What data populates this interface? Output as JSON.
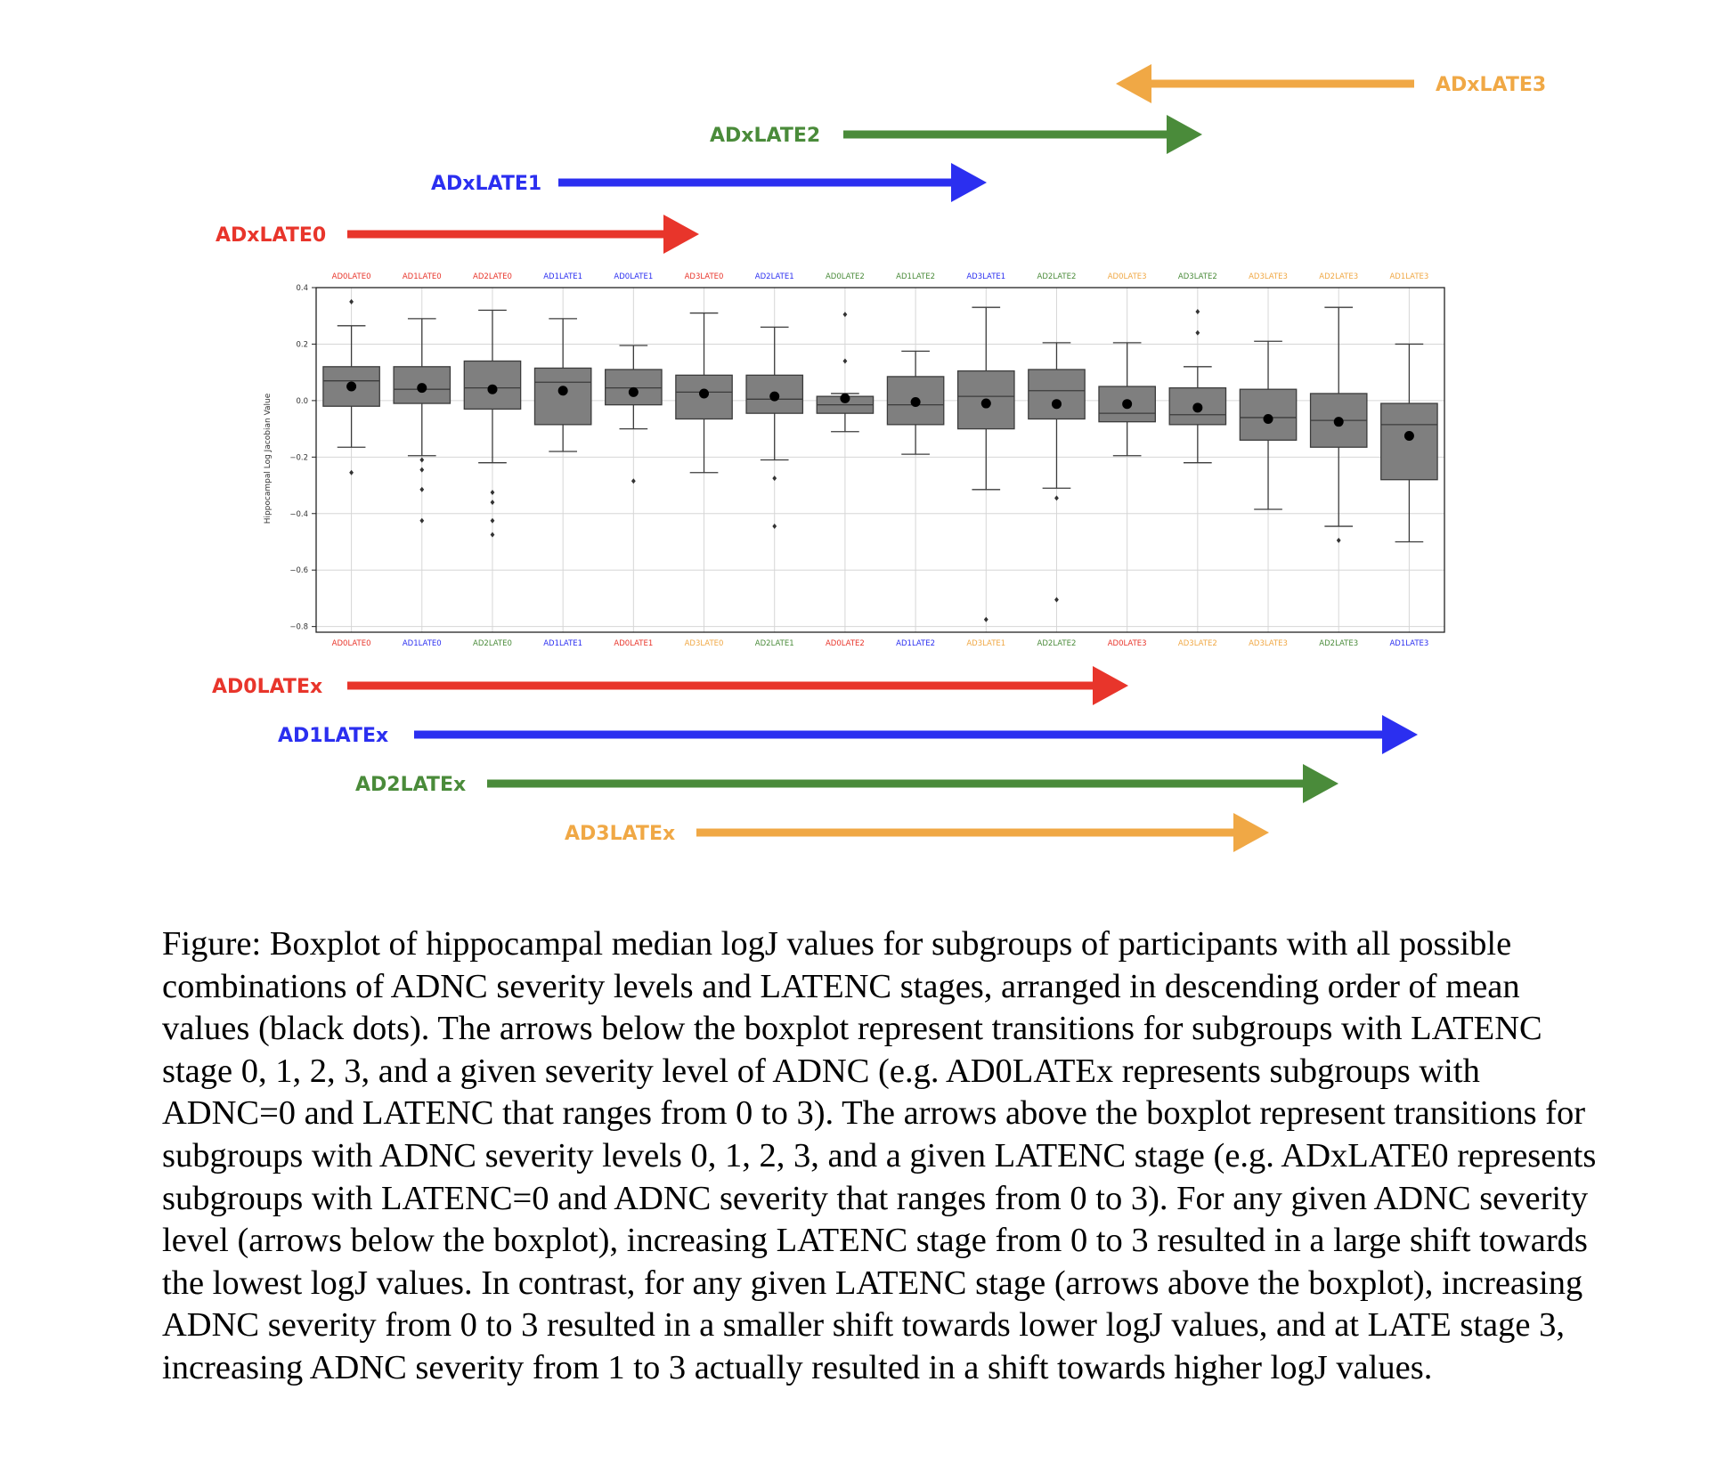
{
  "colors": {
    "ad0": "#e8352b",
    "ad1": "#2b2ff0",
    "ad2": "#4a8b3a",
    "ad3": "#f0a845",
    "box_fill": "#7f7f7f",
    "box_stroke": "#3c3c3c",
    "grid": "#d6d6d6"
  },
  "arrows_top": [
    {
      "label": "ADxLATE0",
      "color": "ad0"
    },
    {
      "label": "ADxLATE1",
      "color": "ad1"
    },
    {
      "label": "ADxLATE2",
      "color": "ad2"
    },
    {
      "label": "ADxLATE3",
      "color": "ad3"
    }
  ],
  "arrows_bottom": [
    {
      "label": "AD0LATEx",
      "color": "ad0"
    },
    {
      "label": "AD1LATEx",
      "color": "ad1"
    },
    {
      "label": "AD2LATEx",
      "color": "ad2"
    },
    {
      "label": "AD3LATEx",
      "color": "ad3"
    }
  ],
  "chart_data": {
    "type": "box",
    "title": "",
    "xlabel": "",
    "ylabel": "Hippocampal Log Jacobian Value",
    "ylim": [
      -0.82,
      0.4
    ],
    "yticks": [
      0.4,
      0.2,
      0.0,
      -0.2,
      -0.4,
      -0.6,
      -0.8
    ],
    "ytick_labels": [
      "0.4",
      "0.2",
      "0.0",
      "−0.2",
      "−0.4",
      "−0.6",
      "−0.8"
    ],
    "grid": true,
    "top_axis_labels": [
      {
        "text": "AD0LATE0",
        "color": "ad0"
      },
      {
        "text": "AD1LATE0",
        "color": "ad0"
      },
      {
        "text": "AD2LATE0",
        "color": "ad0"
      },
      {
        "text": "AD1LATE1",
        "color": "ad1"
      },
      {
        "text": "AD0LATE1",
        "color": "ad1"
      },
      {
        "text": "AD3LATE0",
        "color": "ad0"
      },
      {
        "text": "AD2LATE1",
        "color": "ad1"
      },
      {
        "text": "AD0LATE2",
        "color": "ad2"
      },
      {
        "text": "AD1LATE2",
        "color": "ad2"
      },
      {
        "text": "AD3LATE1",
        "color": "ad1"
      },
      {
        "text": "AD2LATE2",
        "color": "ad2"
      },
      {
        "text": "AD0LATE3",
        "color": "ad3"
      },
      {
        "text": "AD3LATE2",
        "color": "ad2"
      },
      {
        "text": "AD3LATE3",
        "color": "ad3"
      },
      {
        "text": "AD2LATE3",
        "color": "ad3"
      },
      {
        "text": "AD1LATE3",
        "color": "ad3"
      }
    ],
    "bottom_axis_labels": [
      {
        "text": "AD0LATE0",
        "color": "ad0"
      },
      {
        "text": "AD1LATE0",
        "color": "ad1"
      },
      {
        "text": "AD2LATE0",
        "color": "ad2"
      },
      {
        "text": "AD1LATE1",
        "color": "ad1"
      },
      {
        "text": "AD0LATE1",
        "color": "ad0"
      },
      {
        "text": "AD3LATE0",
        "color": "ad3"
      },
      {
        "text": "AD2LATE1",
        "color": "ad2"
      },
      {
        "text": "AD0LATE2",
        "color": "ad0"
      },
      {
        "text": "AD1LATE2",
        "color": "ad1"
      },
      {
        "text": "AD3LATE1",
        "color": "ad3"
      },
      {
        "text": "AD2LATE2",
        "color": "ad2"
      },
      {
        "text": "AD0LATE3",
        "color": "ad0"
      },
      {
        "text": "AD3LATE2",
        "color": "ad3"
      },
      {
        "text": "AD3LATE3",
        "color": "ad3"
      },
      {
        "text": "AD2LATE3",
        "color": "ad2"
      },
      {
        "text": "AD1LATE3",
        "color": "ad1"
      }
    ],
    "boxes": [
      {
        "q1": -0.02,
        "median": 0.07,
        "q3": 0.12,
        "whisker_low": -0.165,
        "whisker_high": 0.265,
        "mean": 0.05,
        "outliers": [
          0.35,
          -0.255
        ]
      },
      {
        "q1": -0.01,
        "median": 0.04,
        "q3": 0.12,
        "whisker_low": -0.195,
        "whisker_high": 0.29,
        "mean": 0.045,
        "outliers": [
          -0.21,
          -0.245,
          -0.315,
          -0.425
        ]
      },
      {
        "q1": -0.03,
        "median": 0.045,
        "q3": 0.14,
        "whisker_low": -0.22,
        "whisker_high": 0.32,
        "mean": 0.04,
        "outliers": [
          -0.325,
          -0.36,
          -0.425,
          -0.475
        ]
      },
      {
        "q1": -0.085,
        "median": 0.065,
        "q3": 0.115,
        "whisker_low": -0.18,
        "whisker_high": 0.29,
        "mean": 0.035,
        "outliers": []
      },
      {
        "q1": -0.015,
        "median": 0.045,
        "q3": 0.11,
        "whisker_low": -0.1,
        "whisker_high": 0.195,
        "mean": 0.03,
        "outliers": [
          -0.285
        ]
      },
      {
        "q1": -0.065,
        "median": 0.03,
        "q3": 0.09,
        "whisker_low": -0.255,
        "whisker_high": 0.31,
        "mean": 0.025,
        "outliers": []
      },
      {
        "q1": -0.045,
        "median": 0.005,
        "q3": 0.09,
        "whisker_low": -0.21,
        "whisker_high": 0.26,
        "mean": 0.015,
        "outliers": [
          -0.275,
          -0.445
        ]
      },
      {
        "q1": -0.045,
        "median": -0.015,
        "q3": 0.015,
        "whisker_low": -0.11,
        "whisker_high": 0.025,
        "mean": 0.008,
        "outliers": [
          0.305,
          0.14
        ]
      },
      {
        "q1": -0.085,
        "median": -0.015,
        "q3": 0.085,
        "whisker_low": -0.19,
        "whisker_high": 0.175,
        "mean": -0.005,
        "outliers": []
      },
      {
        "q1": -0.1,
        "median": 0.015,
        "q3": 0.105,
        "whisker_low": -0.315,
        "whisker_high": 0.33,
        "mean": -0.01,
        "outliers": [
          -0.775
        ]
      },
      {
        "q1": -0.065,
        "median": 0.035,
        "q3": 0.11,
        "whisker_low": -0.31,
        "whisker_high": 0.205,
        "mean": -0.012,
        "outliers": [
          -0.345,
          -0.705
        ]
      },
      {
        "q1": -0.075,
        "median": -0.045,
        "q3": 0.05,
        "whisker_low": -0.195,
        "whisker_high": 0.205,
        "mean": -0.012,
        "outliers": []
      },
      {
        "q1": -0.085,
        "median": -0.05,
        "q3": 0.045,
        "whisker_low": -0.22,
        "whisker_high": 0.12,
        "mean": -0.025,
        "outliers": [
          0.315,
          0.24
        ]
      },
      {
        "q1": -0.14,
        "median": -0.06,
        "q3": 0.04,
        "whisker_low": -0.385,
        "whisker_high": 0.21,
        "mean": -0.065,
        "outliers": []
      },
      {
        "q1": -0.165,
        "median": -0.07,
        "q3": 0.025,
        "whisker_low": -0.445,
        "whisker_high": 0.33,
        "mean": -0.075,
        "outliers": [
          -0.495
        ]
      },
      {
        "q1": -0.28,
        "median": -0.085,
        "q3": -0.01,
        "whisker_low": -0.5,
        "whisker_high": 0.2,
        "mean": -0.125,
        "outliers": []
      }
    ]
  },
  "caption": "Figure: Boxplot of hippocampal median logJ values for subgroups of participants with all possible combinations of ADNC severity levels and LATENC stages, arranged in descending order of mean values (black dots). The arrows below the boxplot represent transitions for subgroups with LATENC stage 0, 1, 2, 3, and a given severity level of ADNC (e.g. AD0LATEx represents subgroups with ADNC=0 and LATENC that ranges from 0 to 3). The arrows above the boxplot represent transitions for subgroups with ADNC severity levels 0, 1, 2, 3, and a given LATENC stage (e.g. ADxLATE0 represents subgroups with LATENC=0 and ADNC severity that ranges from 0 to 3). For any given ADNC severity level (arrows below the boxplot), increasing LATENC stage from 0 to 3 resulted in a large shift towards the lowest logJ values. In contrast, for any given LATENC stage (arrows above the boxplot), increasing ADNC severity from 0 to 3 resulted in a smaller shift towards lower logJ values, and at LATE stage 3, increasing ADNC severity from 1 to 3 actually resulted in a shift towards higher logJ values."
}
